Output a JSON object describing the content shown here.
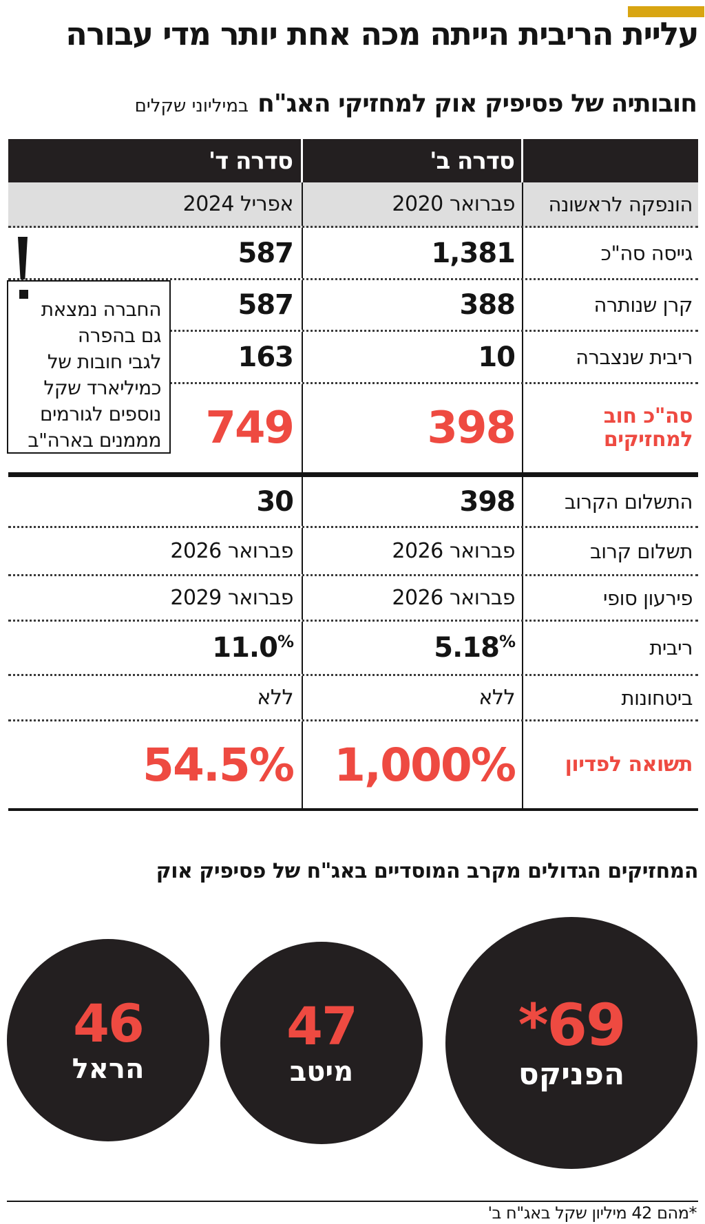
{
  "colors": {
    "red": "#ee4a41",
    "dark": "#231f20",
    "yellow": "#d8a512",
    "gray_row": "#dedede"
  },
  "header": {
    "title": "עליית הריבית הייתה מכה אחת יותר מדי עבורה",
    "subtitle": "חובותיה של פסיפיק אוק למחזיקי האג\"ח",
    "subtitle_note": "במיליוני שקלים"
  },
  "table": {
    "col_b": "סדרה ב'",
    "col_d": "סדרה ד'",
    "rows": [
      {
        "label": "הונפקה לראשונה",
        "b": "פברואר 2020",
        "d": "אפריל 2024"
      },
      {
        "label": "גייסה סה\"כ",
        "b": "1,381",
        "d": "587"
      },
      {
        "label": "קרן שנותרה",
        "b": "388",
        "d": "587"
      },
      {
        "label": "ריבית שנצברה",
        "b": "10",
        "d": "163"
      },
      {
        "label": "סה\"כ חוב למחזיקים",
        "b": "398",
        "d": "749"
      },
      {
        "label": "התשלום הקרוב",
        "b": "398",
        "d": "30"
      },
      {
        "label": "תשלום קרוב",
        "b": "פברואר 2026",
        "d": "פברואר 2026"
      },
      {
        "label": "פירעון סופי",
        "b": "פברואר 2026",
        "d": "פברואר 2029"
      },
      {
        "label": "ריבית",
        "b": "5.18",
        "b_unit": "%",
        "d": "11.0",
        "d_unit": "%"
      },
      {
        "label": "ביטחונות",
        "b": "ללא",
        "d": "ללא"
      },
      {
        "label": "תשואה לפדיון",
        "b": "1,000%",
        "d": "54.5%"
      }
    ]
  },
  "callout": {
    "mark": "!",
    "lines": [
      "החברה נמצאת",
      "גם בהפרה",
      "לגבי חובות של",
      "כמיליארד שקל",
      "נוספים לגורמים",
      "מממנים בארה\"ב"
    ]
  },
  "holders": {
    "title": "המחזיקים הגדולים מקרב המוסדיים באג\"ח של פסיפיק אוק",
    "circles": [
      {
        "value": "*69",
        "name": "הפניקס"
      },
      {
        "value": "47",
        "name": "מיטב"
      },
      {
        "value": "46",
        "name": "הראל"
      }
    ]
  },
  "footnote": "*מהם 42 מיליון שקל באג\"ח ב'",
  "chart_data": [
    {
      "type": "table",
      "title": "חובותיה של פסיפיק אוק למחזיקי האג\"ח (במיליוני שקלים)",
      "columns": [
        "",
        "סדרה ב'",
        "סדרה ד'"
      ],
      "rows": [
        [
          "הונפקה לראשונה",
          "פברואר 2020",
          "אפריל 2024"
        ],
        [
          "גייסה סה\"כ",
          1381,
          587
        ],
        [
          "קרן שנותרה",
          388,
          587
        ],
        [
          "ריבית שנצברה",
          10,
          163
        ],
        [
          "סה\"כ חוב למחזיקים",
          398,
          749
        ],
        [
          "התשלום הקרוב",
          398,
          30
        ],
        [
          "תשלום קרוב",
          "פברואר 2026",
          "פברואר 2026"
        ],
        [
          "פירעון סופי",
          "פברואר 2026",
          "פברואר 2029"
        ],
        [
          "ריבית",
          "5.18%",
          "11.0%"
        ],
        [
          "ביטחונות",
          "ללא",
          "ללא"
        ],
        [
          "תשואה לפדיון",
          "1,000%",
          "54.5%"
        ]
      ],
      "annotation": "החברה נמצאת גם בהפרה לגבי חובות של כמיליארד שקל נוספים לגורמים מממנים בארה\"ב"
    },
    {
      "type": "bubble",
      "title": "המחזיקים הגדולים מקרב המוסדיים באג\"ח של פסיפיק אוק",
      "categories": [
        "הפניקס",
        "מיטב",
        "הראל"
      ],
      "values": [
        69,
        47,
        46
      ],
      "note": "*מהם 42 מיליון שקל באג\"ח ב'"
    }
  ]
}
